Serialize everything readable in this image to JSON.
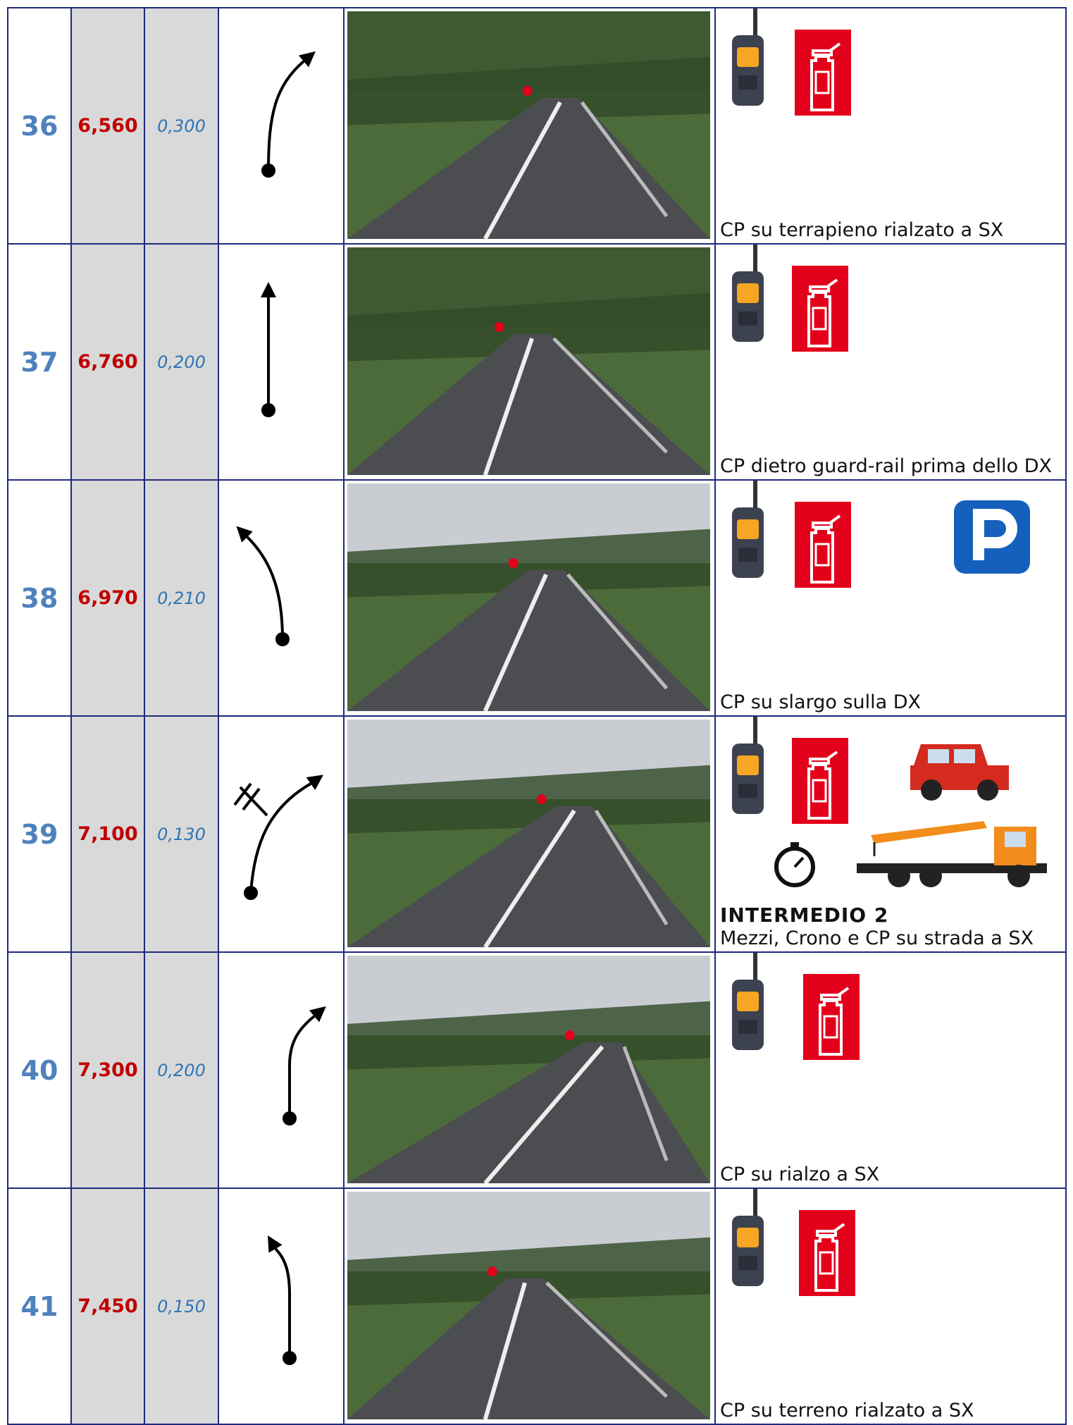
{
  "rows": [
    {
      "number": "36",
      "km": "6,560",
      "partial": "0,300",
      "note": "CP su terrapieno rialzato a SX"
    },
    {
      "number": "37",
      "km": "6,760",
      "partial": "0,200",
      "note": "CP dietro guard-rail prima dello DX"
    },
    {
      "number": "38",
      "km": "6,970",
      "partial": "0,210",
      "note": "CP su slargo sulla DX"
    },
    {
      "number": "39",
      "km": "7,100",
      "partial": "0,130",
      "title": "INTERMEDIO 2",
      "note": "Mezzi, Crono e CP su strada a SX"
    },
    {
      "number": "40",
      "km": "7,300",
      "partial": "0,200",
      "note": "CP su rialzo a SX"
    },
    {
      "number": "41",
      "km": "7,450",
      "partial": "0,150",
      "note": "CP su terreno rialzato a SX"
    }
  ]
}
